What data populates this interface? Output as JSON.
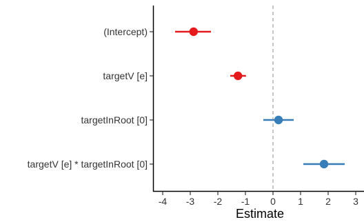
{
  "chart_data": {
    "type": "forest",
    "xlabel": "Estimate",
    "ylabel": "",
    "xlim": [
      -4.35,
      3.3
    ],
    "x_ticks": [
      -4,
      -3,
      -2,
      -1,
      0,
      1,
      2,
      3
    ],
    "x_tick_labels": [
      "-4",
      "-3",
      "-2",
      "-1",
      "0",
      "1",
      "2",
      "3"
    ],
    "reference_line": 0,
    "grid": false,
    "colors": {
      "negative": "#e41a1c",
      "positive": "#377eb8",
      "reference": "#a0a0a0"
    },
    "terms": [
      {
        "label": "(Intercept)",
        "estimate": -2.88,
        "lower": -3.55,
        "upper": -2.25,
        "sign": "negative"
      },
      {
        "label": "targetV [e]",
        "estimate": -1.27,
        "lower": -1.55,
        "upper": -0.98,
        "sign": "negative"
      },
      {
        "label": "targetInRoot [0]",
        "estimate": 0.2,
        "lower": -0.35,
        "upper": 0.75,
        "sign": "positive"
      },
      {
        "label": "targetV [e] * targetInRoot [0]",
        "estimate": 1.85,
        "lower": 1.1,
        "upper": 2.6,
        "sign": "positive"
      }
    ]
  }
}
